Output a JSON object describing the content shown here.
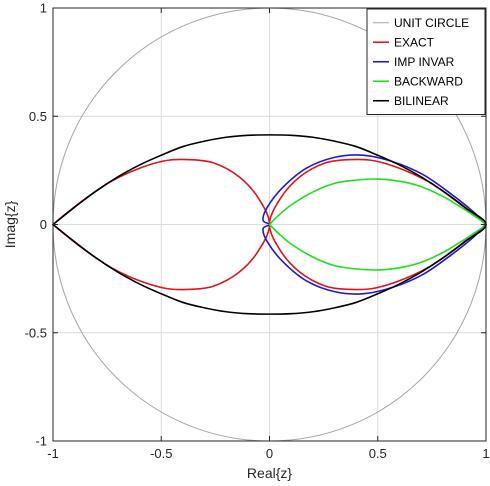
{
  "chart_data": {
    "type": "line",
    "title": "",
    "xlabel": "Real{z}",
    "ylabel": "Imag{z}",
    "xlim": [
      -1,
      1
    ],
    "ylim": [
      -1,
      1
    ],
    "grid": true,
    "legend_position": "top-right",
    "xticks": [
      {
        "value": -1,
        "label": "-1"
      },
      {
        "value": -0.5,
        "label": "-0.5"
      },
      {
        "value": 0,
        "label": "0"
      },
      {
        "value": 0.5,
        "label": "0.5"
      },
      {
        "value": 1,
        "label": "1"
      }
    ],
    "yticks": [
      {
        "value": 1,
        "label": "1"
      },
      {
        "value": 0.5,
        "label": "0.5"
      },
      {
        "value": 0,
        "label": "0"
      },
      {
        "value": -0.5,
        "label": "-0.5"
      },
      {
        "value": -1,
        "label": "-1"
      }
    ],
    "series": [
      {
        "name": "UNIT CIRCLE",
        "color": "#a6a6a6",
        "x": [
          1,
          0.966,
          0.866,
          0.707,
          0.5,
          0.259,
          0,
          -0.259,
          -0.5,
          -0.707,
          -0.866,
          -0.966,
          -1,
          -0.966,
          -0.866,
          -0.707,
          -0.5,
          -0.259,
          0,
          0.259,
          0.5,
          0.707,
          0.866,
          0.966,
          1
        ],
        "y": [
          0,
          0.259,
          0.5,
          0.707,
          0.866,
          0.966,
          1,
          0.966,
          0.866,
          0.707,
          0.5,
          0.259,
          0,
          -0.259,
          -0.5,
          -0.707,
          -0.866,
          -0.966,
          -1,
          -0.966,
          -0.866,
          -0.707,
          -0.5,
          -0.259,
          0
        ]
      },
      {
        "name": "EXACT",
        "color": "#e0141e",
        "x": [
          1,
          0.94,
          0.85,
          0.73,
          0.6,
          0.48,
          0.38,
          0.26,
          0.14,
          0.05,
          0,
          0.05,
          0.14,
          0.26,
          0.38,
          0.48,
          0.6,
          0.73,
          0.85,
          0.94,
          1,
          null,
          -1,
          -0.94,
          -0.85,
          -0.73,
          -0.6,
          -0.48,
          -0.38,
          -0.26,
          -0.14,
          -0.05,
          0,
          -0.05,
          -0.14,
          -0.26,
          -0.38,
          -0.48,
          -0.6,
          -0.73,
          -0.85,
          -0.94,
          -1
        ],
        "y": [
          0,
          0.05,
          0.12,
          0.2,
          0.26,
          0.295,
          0.3,
          0.285,
          0.22,
          0.12,
          0,
          -0.12,
          -0.22,
          -0.285,
          -0.3,
          -0.295,
          -0.26,
          -0.2,
          -0.12,
          -0.05,
          0,
          null,
          0,
          0.05,
          0.12,
          0.2,
          0.26,
          0.295,
          0.3,
          0.285,
          0.22,
          0.12,
          0,
          -0.12,
          -0.22,
          -0.285,
          -0.3,
          -0.295,
          -0.26,
          -0.2,
          -0.12,
          -0.05,
          0
        ]
      },
      {
        "name": "IMP INVAR",
        "color": "#1b1bd0",
        "x": [
          1,
          0.94,
          0.84,
          0.71,
          0.57,
          0.43,
          0.3,
          0.17,
          0.06,
          -0.01,
          -0.03,
          0,
          -0.03,
          -0.01,
          0.06,
          0.17,
          0.3,
          0.43,
          0.57,
          0.71,
          0.84,
          0.94,
          1
        ],
        "y": [
          0,
          0.06,
          0.14,
          0.23,
          0.29,
          0.32,
          0.31,
          0.26,
          0.17,
          0.08,
          0.02,
          0,
          -0.02,
          -0.08,
          -0.17,
          -0.26,
          -0.31,
          -0.32,
          -0.29,
          -0.23,
          -0.14,
          -0.06,
          0
        ]
      },
      {
        "name": "BACKWARD",
        "color": "#1be11b",
        "x": [
          0,
          0.04,
          0.1,
          0.2,
          0.3,
          0.4,
          0.5,
          0.6,
          0.7,
          0.8,
          0.9,
          0.96,
          1,
          0.96,
          0.9,
          0.8,
          0.7,
          0.6,
          0.5,
          0.4,
          0.3,
          0.2,
          0.1,
          0.04,
          0
        ],
        "y": [
          0,
          0.04,
          0.09,
          0.15,
          0.19,
          0.205,
          0.21,
          0.2,
          0.175,
          0.13,
          0.07,
          0.03,
          0,
          -0.03,
          -0.07,
          -0.13,
          -0.175,
          -0.2,
          -0.21,
          -0.205,
          -0.19,
          -0.15,
          -0.09,
          -0.04,
          0
        ]
      },
      {
        "name": "BILINEAR",
        "color": "#000000",
        "x": [
          -1,
          -0.9,
          -0.8,
          -0.7,
          -0.6,
          -0.5,
          -0.4,
          -0.3,
          -0.2,
          -0.1,
          0,
          0.1,
          0.2,
          0.3,
          0.4,
          0.5,
          0.6,
          0.7,
          0.8,
          0.9,
          1,
          0.9,
          0.8,
          0.7,
          0.6,
          0.5,
          0.4,
          0.3,
          0.2,
          0.1,
          0,
          -0.1,
          -0.2,
          -0.3,
          -0.4,
          -0.5,
          -0.6,
          -0.7,
          -0.8,
          -0.9,
          -1
        ],
        "y": [
          0,
          0.08,
          0.155,
          0.22,
          0.275,
          0.32,
          0.36,
          0.385,
          0.403,
          0.412,
          0.414,
          0.412,
          0.403,
          0.385,
          0.36,
          0.32,
          0.275,
          0.22,
          0.155,
          0.08,
          0,
          -0.08,
          -0.155,
          -0.22,
          -0.275,
          -0.32,
          -0.36,
          -0.385,
          -0.403,
          -0.412,
          -0.414,
          -0.412,
          -0.403,
          -0.385,
          -0.36,
          -0.32,
          -0.275,
          -0.22,
          -0.155,
          -0.08,
          0
        ]
      }
    ]
  }
}
